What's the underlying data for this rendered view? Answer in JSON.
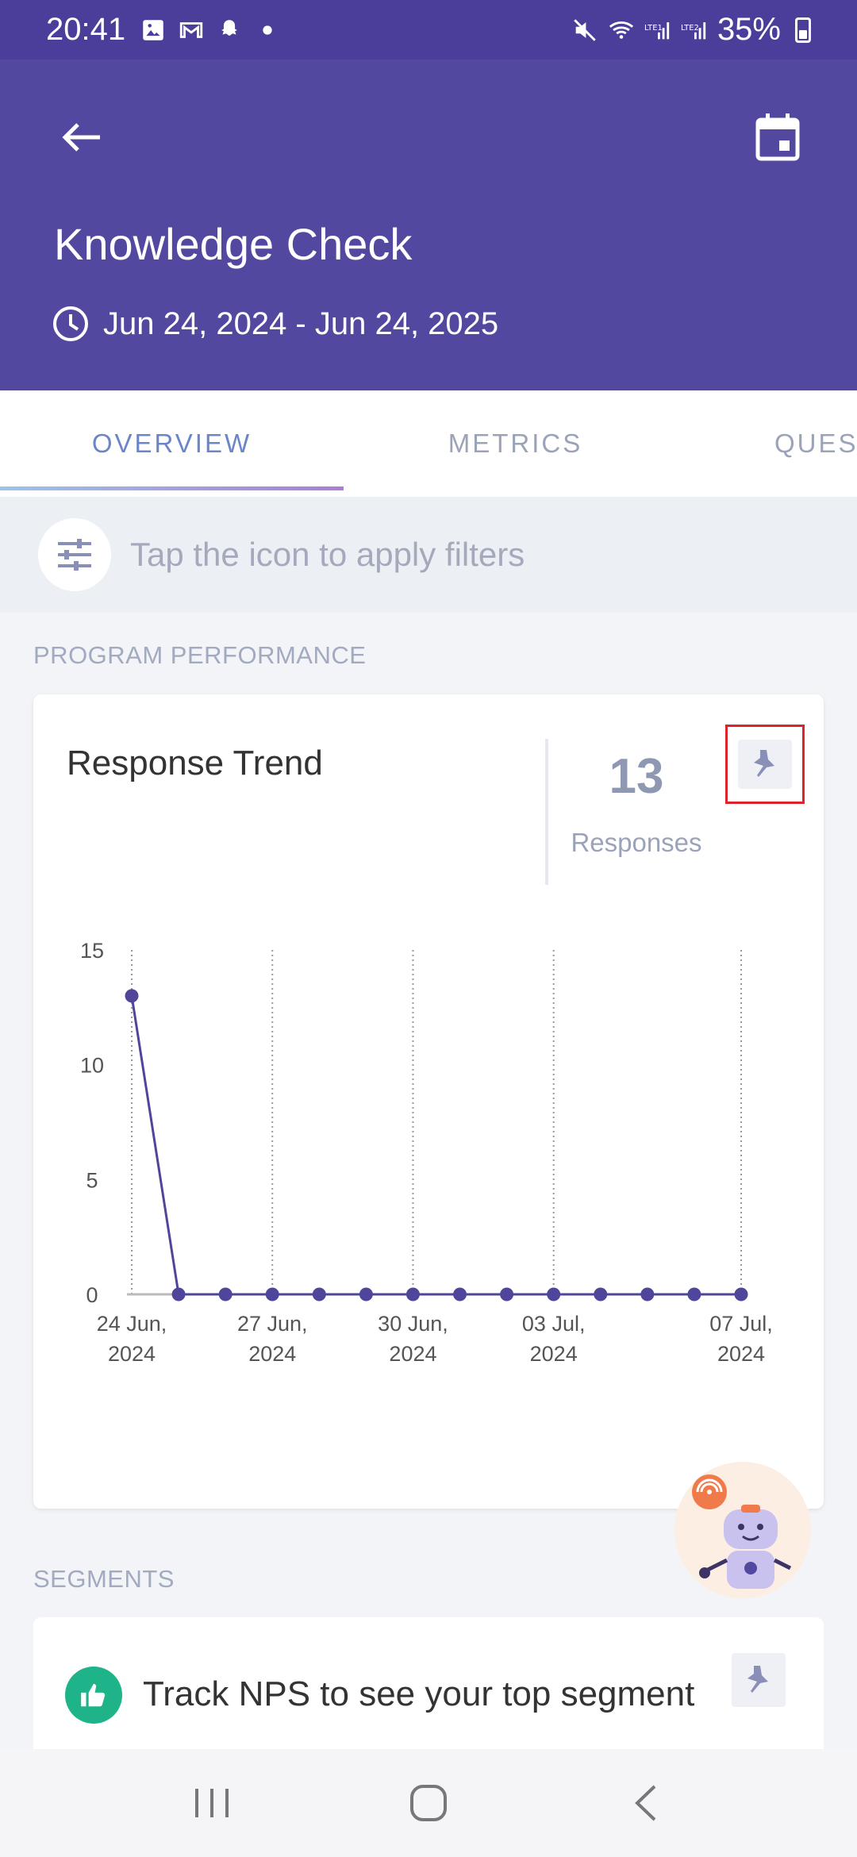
{
  "status_bar": {
    "time": "20:41",
    "battery": "35%",
    "icons": [
      "gallery-icon",
      "gmail-icon",
      "snapchat-icon",
      "dot-icon",
      "mute-icon",
      "wifi-icon",
      "signal-lte1-icon",
      "signal-lte2-icon",
      "battery-icon"
    ]
  },
  "header": {
    "title": "Knowledge Check",
    "date_range": "Jun 24, 2024 - Jun 24, 2025",
    "color": "#5248a0"
  },
  "tabs": [
    {
      "label": "OVERVIEW",
      "active": true
    },
    {
      "label": "METRICS",
      "active": false
    },
    {
      "label": "QUESTIONS",
      "active": false
    }
  ],
  "filter": {
    "hint": "Tap the icon to apply filters"
  },
  "sections": {
    "program_performance": "PROGRAM PERFORMANCE",
    "segments": "SEGMENTS"
  },
  "response_trend": {
    "title": "Response Trend",
    "count": "13",
    "count_label": "Responses"
  },
  "chart_data": {
    "type": "line",
    "x": [
      "2024-06-24",
      "2024-06-25",
      "2024-06-26",
      "2024-06-27",
      "2024-06-28",
      "2024-06-29",
      "2024-06-30",
      "2024-07-01",
      "2024-07-02",
      "2024-07-03",
      "2024-07-04",
      "2024-07-05",
      "2024-07-06",
      "2024-07-07"
    ],
    "values": [
      13,
      0,
      0,
      0,
      0,
      0,
      0,
      0,
      0,
      0,
      0,
      0,
      0,
      0
    ],
    "ylim": [
      0,
      15
    ],
    "y_ticks": [
      "0",
      "5",
      "10",
      "15"
    ],
    "x_ticks": [
      {
        "index": 0,
        "line1": "24 Jun,",
        "line2": "2024"
      },
      {
        "index": 3,
        "line1": "27 Jun,",
        "line2": "2024"
      },
      {
        "index": 6,
        "line1": "30 Jun,",
        "line2": "2024"
      },
      {
        "index": 9,
        "line1": "03 Jul,",
        "line2": "2024"
      },
      {
        "index": 13,
        "line1": "07 Jul,",
        "line2": "2024"
      }
    ],
    "color": "#4f459a",
    "grid": "vertical-dotted"
  },
  "segments_card": {
    "text": "Track NPS to see your top segment"
  }
}
